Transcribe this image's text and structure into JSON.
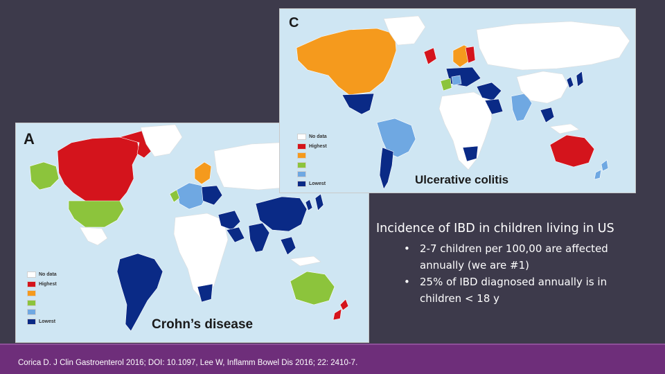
{
  "colors": {
    "background": "#3d3a4b",
    "footer": "#6e2e7a",
    "ocean": "#cfe6f3",
    "no_data": "#ffffff",
    "highest": "#d4141c",
    "orange": "#f59a1d",
    "green": "#8cc43c",
    "light_blue": "#6fa8e2",
    "lowest": "#0a2a86"
  },
  "map_a": {
    "letter": "A",
    "title": "Crohn’s disease",
    "legend": [
      {
        "label": "No data",
        "color": "#ffffff"
      },
      {
        "label": "Highest",
        "color": "#d4141c"
      },
      {
        "label": "",
        "color": "#f59a1d"
      },
      {
        "label": "",
        "color": "#8cc43c"
      },
      {
        "label": "",
        "color": "#6fa8e2"
      },
      {
        "label": "Lowest",
        "color": "#0a2a86"
      }
    ]
  },
  "map_c": {
    "letter": "C",
    "title": "Ulcerative colitis",
    "legend": [
      {
        "label": "No data",
        "color": "#ffffff"
      },
      {
        "label": "Highest",
        "color": "#d4141c"
      },
      {
        "label": "",
        "color": "#f59a1d"
      },
      {
        "label": "",
        "color": "#8cc43c"
      },
      {
        "label": "",
        "color": "#6fa8e2"
      },
      {
        "label": "Lowest",
        "color": "#0a2a86"
      }
    ]
  },
  "info": {
    "title": "Incidence of IBD in children living in US",
    "bullets": [
      "2-7 children per 100,00  are affected annually  (we are #1)",
      "25% of IBD diagnosed annually is in children < 18 y"
    ]
  },
  "footer": {
    "citation": "Corica D. J Clin Gastroenterol 2016; DOI: 10.1097, Lee W, Inflamm Bowel Dis 2016; 22: 2410-7."
  }
}
